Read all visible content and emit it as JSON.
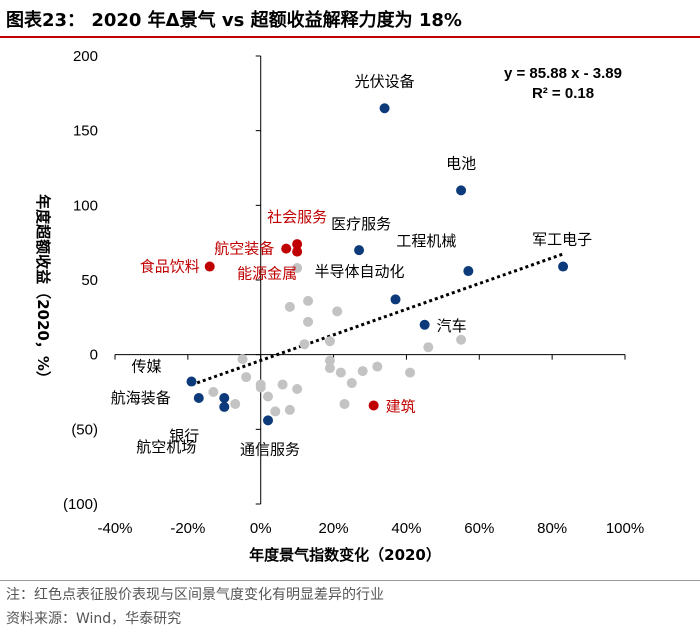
{
  "title": "图表23： 2020 年Δ景气 vs 超额收益解释力度为 18%",
  "footer": {
    "note": "注：红色点表征股价表现与区间景气度变化有明显差异的行业",
    "source": "资料来源：Wind，华泰研究"
  },
  "colors": {
    "highlight": "#0c3a7a",
    "divergent": "#c00000",
    "other": "#c3c3c3",
    "trend": "#000000",
    "title_rule": "#c00000"
  },
  "chart_data": {
    "type": "scatter",
    "title": "2020 年Δ景气 vs 超额收益解释力度为 18%",
    "xlabel": "年度景气指数变化（2020）",
    "ylabel": "年度超额收益（2020，%）",
    "xlim": [
      -0.4,
      1.0
    ],
    "ylim": [
      -100,
      200
    ],
    "xticks": [
      -0.4,
      -0.2,
      0,
      0.2,
      0.4,
      0.6,
      0.8,
      1.0
    ],
    "xtick_labels": [
      "-40%",
      "-20%",
      "0%",
      "20%",
      "40%",
      "60%",
      "80%",
      "100%"
    ],
    "yticks": [
      -100,
      -50,
      0,
      50,
      100,
      150,
      200
    ],
    "ytick_labels": [
      "(100)",
      "(50)",
      "0",
      "50",
      "100",
      "150",
      "200"
    ],
    "equation": "y = 85.88 x - 3.89",
    "r_squared": "R² = 0.18",
    "trendline": {
      "slope": 85.88,
      "intercept": -3.89,
      "x_range": [
        -0.19,
        0.83
      ],
      "style": "dotted"
    },
    "labeled_points": [
      {
        "label": "光伏设备",
        "x": 0.34,
        "y": 165,
        "group": "highlight",
        "label_pos": "above"
      },
      {
        "label": "电池",
        "x": 0.55,
        "y": 110,
        "group": "highlight",
        "label_pos": "above"
      },
      {
        "label": "军工电子",
        "x": 0.83,
        "y": 59,
        "group": "highlight",
        "label_pos": "above"
      },
      {
        "label": "工程机械",
        "x": 0.57,
        "y": 56,
        "group": "highlight",
        "label_pos": "above-left"
      },
      {
        "label": "医疗服务",
        "x": 0.27,
        "y": 70,
        "group": "highlight",
        "label_pos": "above"
      },
      {
        "label": "半导体自动化",
        "x": 0.37,
        "y": 37,
        "group": "highlight",
        "label_pos": "above-left"
      },
      {
        "label": "汽车",
        "x": 0.45,
        "y": 20,
        "group": "highlight",
        "label_pos": "right"
      },
      {
        "label": "传媒",
        "x": -0.19,
        "y": -18,
        "group": "highlight",
        "label_pos": "left"
      },
      {
        "label": "航海装备",
        "x": -0.17,
        "y": -29,
        "group": "highlight",
        "label_pos": "left"
      },
      {
        "label": "银行",
        "x": -0.1,
        "y": -35,
        "group": "highlight",
        "label_pos": "left-down"
      },
      {
        "label": "航空机场",
        "x": -0.1,
        "y": -29,
        "group": "highlight",
        "label_pos": "below-left"
      },
      {
        "label": "通信服务",
        "x": 0.02,
        "y": -44,
        "group": "highlight",
        "label_pos": "below"
      },
      {
        "label": "社会服务",
        "x": 0.1,
        "y": 74,
        "group": "divergent",
        "label_pos": "above"
      },
      {
        "label": "航空装备",
        "x": 0.07,
        "y": 71,
        "group": "divergent",
        "label_pos": "left"
      },
      {
        "label": "能源金属",
        "x": 0.1,
        "y": 69,
        "group": "divergent",
        "label_pos": "below-left"
      },
      {
        "label": "食品饮料",
        "x": -0.14,
        "y": 59,
        "group": "divergent",
        "label_pos": "left"
      },
      {
        "label": "建筑",
        "x": 0.31,
        "y": -34,
        "group": "divergent",
        "label_pos": "right"
      }
    ],
    "unlabeled_points": [
      {
        "x": 0.13,
        "y": 36
      },
      {
        "x": 0.08,
        "y": 32
      },
      {
        "x": 0.13,
        "y": 22
      },
      {
        "x": 0.21,
        "y": 29
      },
      {
        "x": 0.19,
        "y": 9
      },
      {
        "x": 0.1,
        "y": 58
      },
      {
        "x": 0.12,
        "y": 7
      },
      {
        "x": 0.55,
        "y": 10
      },
      {
        "x": 0.46,
        "y": 5
      },
      {
        "x": -0.05,
        "y": -3
      },
      {
        "x": -0.04,
        "y": -15
      },
      {
        "x": 0.0,
        "y": -22
      },
      {
        "x": 0.06,
        "y": -20
      },
      {
        "x": 0.1,
        "y": -23
      },
      {
        "x": 0.02,
        "y": -28
      },
      {
        "x": 0.04,
        "y": -38
      },
      {
        "x": 0.08,
        "y": -37
      },
      {
        "x": 0.19,
        "y": -4
      },
      {
        "x": 0.19,
        "y": -9
      },
      {
        "x": 0.22,
        "y": -12
      },
      {
        "x": 0.25,
        "y": -19
      },
      {
        "x": 0.28,
        "y": -11
      },
      {
        "x": 0.32,
        "y": -8
      },
      {
        "x": 0.41,
        "y": -12
      },
      {
        "x": 0.23,
        "y": -33
      },
      {
        "x": -0.07,
        "y": -33
      },
      {
        "x": -0.13,
        "y": -25
      },
      {
        "x": 0.0,
        "y": -20
      }
    ]
  }
}
